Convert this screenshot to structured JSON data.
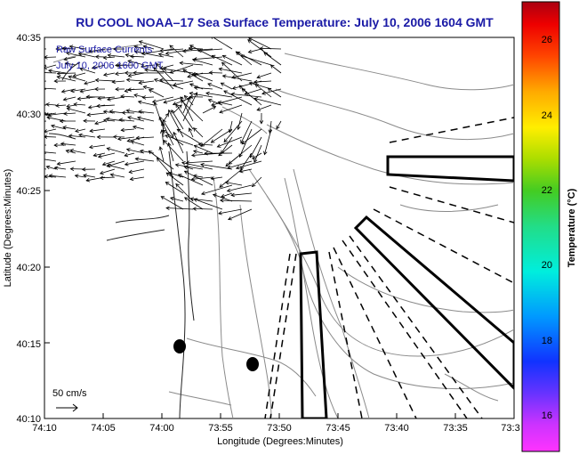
{
  "title": "RU COOL  NOAA–17  Sea Surface Temperature:  July 10, 2006 1604 GMT",
  "legend": {
    "line1": "Raw Surface Currents",
    "line2": "July 10, 2006 1600 GMT"
  },
  "scale_label": "50 cm/s",
  "axes": {
    "xlabel": "Longitude (Degrees:Minutes)",
    "ylabel": "Latitude (Degrees:Minutes)",
    "x_ticks": [
      "74:10",
      "74:05",
      "74:00",
      "73:55",
      "73:50",
      "73:45",
      "73:40",
      "73:35",
      "73:3"
    ],
    "y_ticks": [
      "40:35",
      "40:30",
      "40:25",
      "40:20",
      "40:15",
      "40:10"
    ]
  },
  "colorbar": {
    "label": "Temperature (°C)",
    "ticks": [
      "26",
      "24",
      "22",
      "20",
      "18",
      "16"
    ],
    "range": [
      15,
      27
    ]
  },
  "map": {
    "lon_range": [
      "74:10",
      "73:30"
    ],
    "lat_range": [
      "40:10",
      "40:35"
    ],
    "markers": 2,
    "survey_lines": 10
  }
}
